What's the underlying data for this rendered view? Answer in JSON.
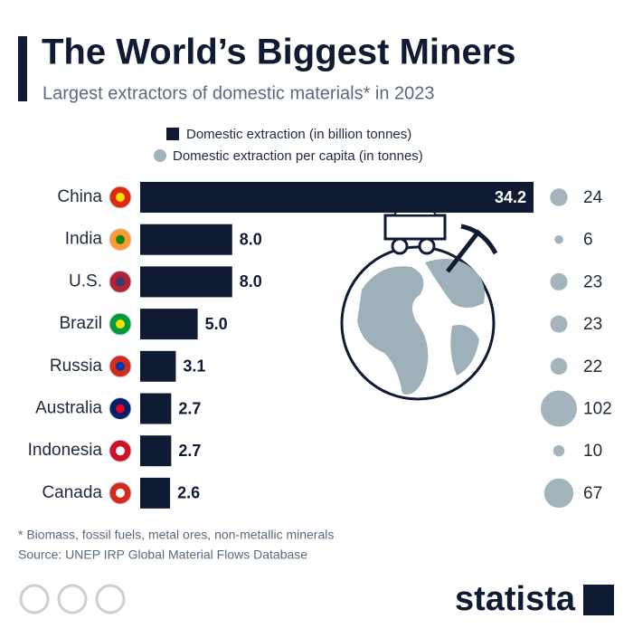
{
  "chart_data": {
    "type": "bar",
    "orientation": "horizontal",
    "title": "The World’s Biggest Miners",
    "subtitle": "Largest extractors of domestic materials* in 2023",
    "categories": [
      "China",
      "India",
      "U.S.",
      "Brazil",
      "Russia",
      "Australia",
      "Indonesia",
      "Canada"
    ],
    "series": [
      {
        "name": "Domestic extraction (in billion tonnes)",
        "color": "#0f1b33",
        "values": [
          34.2,
          8.0,
          8.0,
          5.0,
          3.1,
          2.7,
          2.7,
          2.6
        ],
        "value_labels": [
          "34.2",
          "8.0",
          "8.0",
          "5.0",
          "3.1",
          "2.7",
          "2.7",
          "2.6"
        ]
      },
      {
        "name": "Domestic extraction per capita (in tonnes)",
        "color": "#a3b4bd",
        "values": [
          24,
          6,
          23,
          23,
          22,
          102,
          10,
          67
        ]
      }
    ],
    "note": "* Biomass, fossil fuels, metal ores, non-metallic minerals",
    "source": "Source: UNEP IRP Global Material Flows Database",
    "brand": "statista"
  }
}
